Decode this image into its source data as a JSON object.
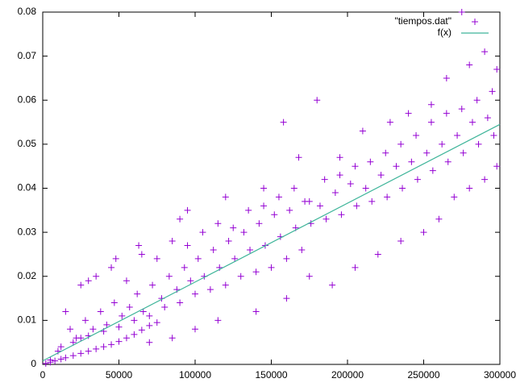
{
  "chart_data": {
    "type": "scatter",
    "xlim": [
      0,
      300000
    ],
    "xticks": [
      0,
      50000,
      100000,
      150000,
      200000,
      250000,
      300000
    ],
    "ylim": [
      0,
      0.08
    ],
    "yticks": [
      0,
      0.01,
      0.02,
      0.03,
      0.04,
      0.05,
      0.06,
      0.07,
      0.08
    ],
    "legend": "upper right",
    "series": [
      {
        "name": "\"tiempos.dat\"",
        "color": "#9400d3",
        "marker": "+",
        "x": [
          2000,
          5000,
          8000,
          12000,
          15000,
          20000,
          25000,
          30000,
          35000,
          40000,
          45000,
          50000,
          55000,
          60000,
          65000,
          70000,
          75000,
          10000,
          20000,
          25000,
          30000,
          40000,
          50000,
          60000,
          70000,
          80000,
          90000,
          100000,
          110000,
          120000,
          130000,
          140000,
          150000,
          160000,
          170000,
          5000,
          12000,
          18000,
          22000,
          28000,
          33000,
          38000,
          42000,
          47000,
          52000,
          57000,
          62000,
          66000,
          72000,
          78000,
          83000,
          88000,
          93000,
          97000,
          102000,
          106000,
          112000,
          116000,
          122000,
          126000,
          132000,
          136000,
          142000,
          146000,
          152000,
          156000,
          162000,
          166000,
          172000,
          176000,
          182000,
          186000,
          192000,
          196000,
          202000,
          206000,
          212000,
          216000,
          222000,
          226000,
          232000,
          236000,
          242000,
          246000,
          252000,
          256000,
          262000,
          266000,
          272000,
          276000,
          282000,
          286000,
          292000,
          296000,
          15000,
          25000,
          35000,
          45000,
          55000,
          65000,
          75000,
          85000,
          95000,
          105000,
          115000,
          125000,
          135000,
          145000,
          155000,
          165000,
          175000,
          185000,
          195000,
          205000,
          215000,
          225000,
          235000,
          245000,
          255000,
          265000,
          275000,
          285000,
          295000,
          30000,
          48000,
          63000,
          90000,
          95000,
          120000,
          145000,
          158000,
          168000,
          180000,
          195000,
          210000,
          228000,
          240000,
          255000,
          265000,
          275000,
          280000,
          290000,
          298000,
          260000,
          270000,
          280000,
          290000,
          298000,
          250000,
          235000,
          220000,
          205000,
          190000,
          175000,
          160000,
          140000,
          115000,
          100000,
          85000,
          70000
        ],
        "values": [
          0.0002,
          0.0005,
          0.0008,
          0.0012,
          0.0015,
          0.002,
          0.0025,
          0.003,
          0.0035,
          0.004,
          0.0045,
          0.0052,
          0.006,
          0.0068,
          0.0078,
          0.0088,
          0.0095,
          0.003,
          0.005,
          0.006,
          0.0065,
          0.0075,
          0.0085,
          0.01,
          0.011,
          0.013,
          0.014,
          0.016,
          0.017,
          0.018,
          0.02,
          0.021,
          0.022,
          0.024,
          0.026,
          0.001,
          0.004,
          0.008,
          0.006,
          0.01,
          0.008,
          0.012,
          0.009,
          0.014,
          0.011,
          0.013,
          0.016,
          0.012,
          0.018,
          0.015,
          0.02,
          0.017,
          0.022,
          0.019,
          0.024,
          0.02,
          0.026,
          0.022,
          0.028,
          0.024,
          0.03,
          0.026,
          0.032,
          0.027,
          0.034,
          0.029,
          0.035,
          0.031,
          0.037,
          0.032,
          0.036,
          0.033,
          0.039,
          0.034,
          0.041,
          0.036,
          0.04,
          0.037,
          0.043,
          0.038,
          0.045,
          0.04,
          0.046,
          0.042,
          0.048,
          0.044,
          0.05,
          0.046,
          0.052,
          0.048,
          0.055,
          0.05,
          0.056,
          0.052,
          0.012,
          0.018,
          0.02,
          0.022,
          0.019,
          0.025,
          0.024,
          0.028,
          0.027,
          0.03,
          0.032,
          0.031,
          0.035,
          0.036,
          0.038,
          0.04,
          0.037,
          0.042,
          0.043,
          0.045,
          0.046,
          0.048,
          0.05,
          0.052,
          0.055,
          0.057,
          0.058,
          0.06,
          0.062,
          0.019,
          0.024,
          0.027,
          0.033,
          0.035,
          0.038,
          0.04,
          0.055,
          0.047,
          0.06,
          0.047,
          0.053,
          0.055,
          0.057,
          0.059,
          0.065,
          0.08,
          0.068,
          0.071,
          0.067,
          0.033,
          0.038,
          0.04,
          0.042,
          0.045,
          0.03,
          0.028,
          0.025,
          0.022,
          0.018,
          0.02,
          0.015,
          0.012,
          0.01,
          0.008,
          0.006,
          0.005
        ]
      },
      {
        "name": "f(x)",
        "color": "#3fb59a",
        "type": "line",
        "x": [
          0,
          300000
        ],
        "values": [
          0.0008,
          0.0545
        ]
      }
    ]
  }
}
